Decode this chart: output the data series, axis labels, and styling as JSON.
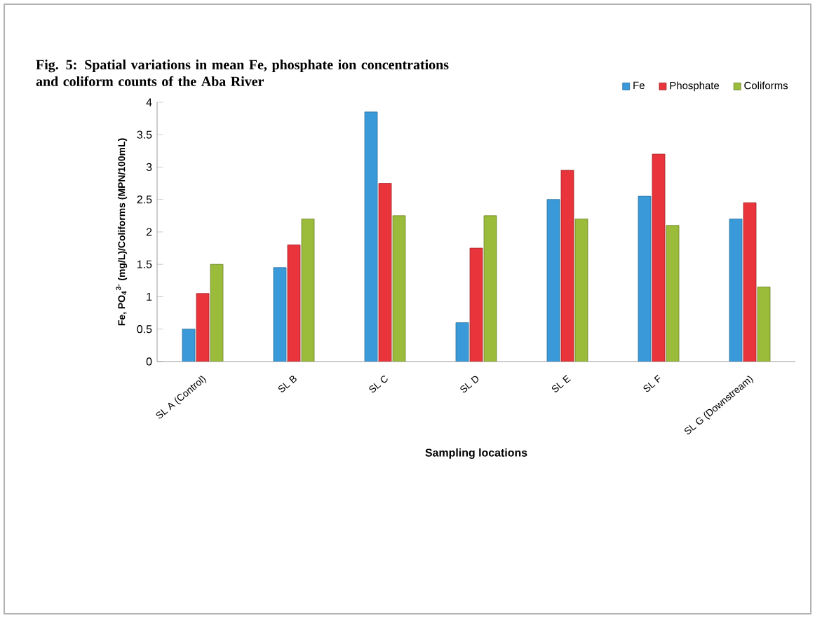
{
  "chart_data": {
    "type": "bar",
    "title": "Fig. 5: Spatial variations in mean Fe, phosphate ion concentrations and coliform counts of the Aba River",
    "xlabel": "Sampling locations",
    "ylabel": "Fe, PO$_{4}$$^{3-}$ (mg/L)/Coliforms (MPN/100mL)",
    "categories": [
      "SL A (Control)",
      "SL B",
      "SL C",
      "SL D",
      "SL E",
      "SL F",
      "SL G (Downstream)"
    ],
    "series": [
      {
        "name": "Fe",
        "color": "#3a9ad9",
        "values": [
          0.5,
          1.45,
          3.85,
          0.6,
          2.5,
          2.55,
          2.2
        ]
      },
      {
        "name": "Phosphate",
        "color": "#e8343a",
        "values": [
          1.05,
          1.8,
          2.75,
          1.75,
          2.95,
          3.2,
          2.45
        ]
      },
      {
        "name": "Coliforms",
        "color": "#9bbb3a",
        "values": [
          1.5,
          2.2,
          2.25,
          2.25,
          2.2,
          2.1,
          1.15
        ]
      }
    ],
    "ylim": [
      0,
      4
    ],
    "yticks": [
      0,
      0.5,
      1,
      1.5,
      2,
      2.5,
      3,
      3.5,
      4
    ],
    "grid": false,
    "legend": "top right"
  }
}
